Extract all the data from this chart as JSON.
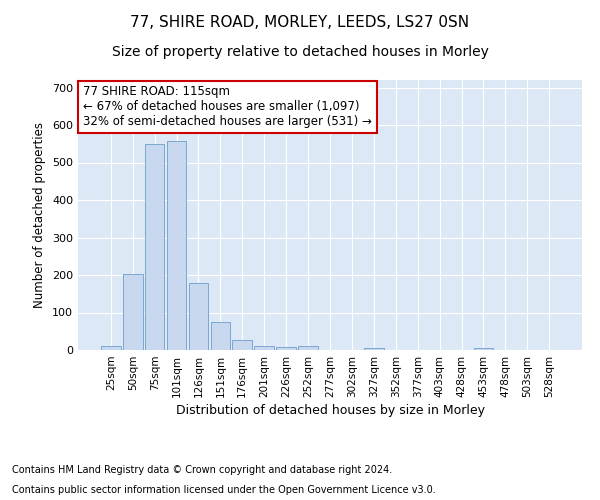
{
  "title1": "77, SHIRE ROAD, MORLEY, LEEDS, LS27 0SN",
  "title2": "Size of property relative to detached houses in Morley",
  "xlabel": "Distribution of detached houses by size in Morley",
  "ylabel": "Number of detached properties",
  "categories": [
    "25sqm",
    "50sqm",
    "75sqm",
    "101sqm",
    "126sqm",
    "151sqm",
    "176sqm",
    "201sqm",
    "226sqm",
    "252sqm",
    "277sqm",
    "302sqm",
    "327sqm",
    "352sqm",
    "377sqm",
    "403sqm",
    "428sqm",
    "453sqm",
    "478sqm",
    "503sqm",
    "528sqm"
  ],
  "values": [
    10,
    203,
    550,
    558,
    178,
    76,
    28,
    10,
    7,
    10,
    0,
    0,
    5,
    0,
    0,
    0,
    0,
    6,
    0,
    0,
    0
  ],
  "bar_color": "#c8d9ef",
  "bar_edge_color": "#7ba7d0",
  "annotation_line1": "77 SHIRE ROAD: 115sqm",
  "annotation_line2": "← 67% of detached houses are smaller (1,097)",
  "annotation_line3": "32% of semi-detached houses are larger (531) →",
  "annotation_box_color": "#ffffff",
  "annotation_box_edge": "#cc0000",
  "ylim": [
    0,
    720
  ],
  "yticks": [
    0,
    100,
    200,
    300,
    400,
    500,
    600,
    700
  ],
  "footer1": "Contains HM Land Registry data © Crown copyright and database right 2024.",
  "footer2": "Contains public sector information licensed under the Open Government Licence v3.0.",
  "bg_color": "#dce8f5",
  "grid_color": "#ffffff",
  "title1_fontsize": 11,
  "title2_fontsize": 10,
  "xlabel_fontsize": 9,
  "ylabel_fontsize": 8.5,
  "footer_fontsize": 7
}
